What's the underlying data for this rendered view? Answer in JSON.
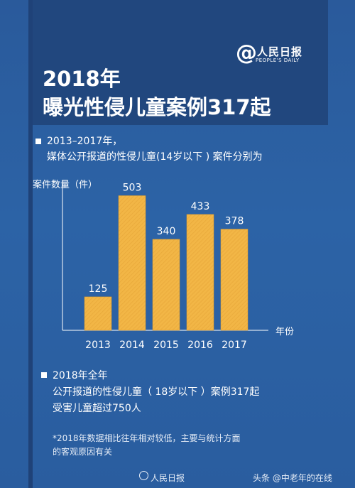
{
  "brand": {
    "logo_symbol": "@",
    "logo_cn": "人民日报",
    "logo_en": "PEOPLE'S DAILY"
  },
  "header": {
    "title_line1": "2018年",
    "title_line2": "曝光性侵儿童案例317起"
  },
  "section1": {
    "line1": "2013–2017年，",
    "line2": "媒体公开报道的性侵儿童(14岁以下 ) 案件分别为"
  },
  "section2": {
    "line1": "2018年全年",
    "line2": "公开报道的性侵儿童（ 18岁以下 ）案例317起",
    "line3": "受害儿童超过750人"
  },
  "note": {
    "line1": "*2018年数据相比往年相对较低，主要与统计方面",
    "line2": "的客观原因有关"
  },
  "footer": {
    "weibo": "人民日报",
    "toutiao": "头条 @中老年的在线"
  },
  "colors": {
    "bar": "#f2b646",
    "bar_stroke": "#e09a26",
    "axis": "#ffffff"
  },
  "chart_data": {
    "type": "bar",
    "ylabel": "案件数量（件）",
    "xlabel": "年份",
    "categories": [
      "2013",
      "2014",
      "2015",
      "2016",
      "2017"
    ],
    "values": [
      125,
      503,
      340,
      433,
      378
    ],
    "ylim": [
      0,
      560
    ],
    "grid": false,
    "legend": "none"
  }
}
